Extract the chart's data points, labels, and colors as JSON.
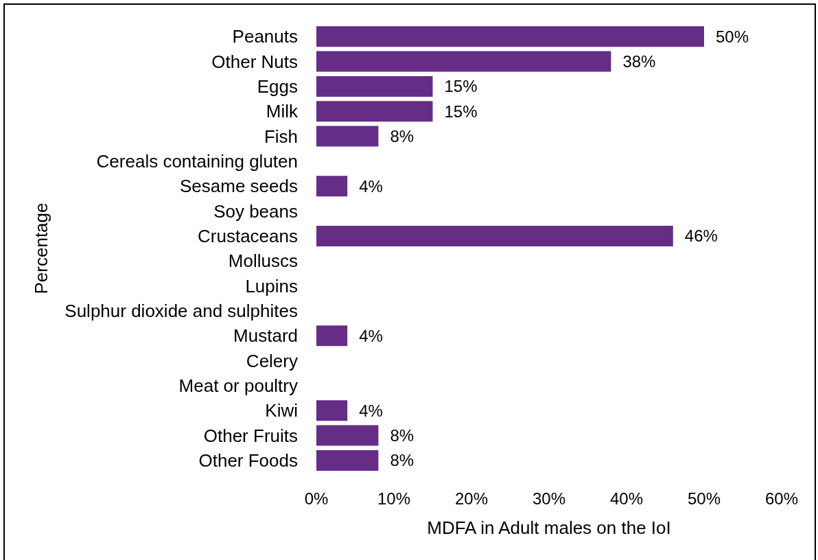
{
  "chart_data": {
    "type": "bar",
    "orientation": "horizontal",
    "xlabel": "MDFA in Adult males on the IoI",
    "ylabel": "Percentage",
    "categories": [
      "Peanuts",
      "Other Nuts",
      "Eggs",
      "Milk",
      "Fish",
      "Cereals containing gluten",
      "Sesame seeds",
      "Soy beans",
      "Crustaceans",
      "Molluscs",
      "Lupins",
      "Sulphur dioxide and sulphites",
      "Mustard",
      "Celery",
      "Meat or poultry",
      "Kiwi",
      "Other Fruits",
      "Other Foods"
    ],
    "values": [
      50,
      38,
      15,
      15,
      8,
      null,
      4,
      null,
      46,
      null,
      null,
      null,
      4,
      null,
      null,
      4,
      8,
      8
    ],
    "value_labels": [
      "50%",
      "38%",
      "15%",
      "15%",
      "8%",
      null,
      "4%",
      null,
      "46%",
      null,
      null,
      null,
      "4%",
      null,
      null,
      "4%",
      "8%",
      "8%"
    ],
    "color": "#652d86",
    "xlim": [
      0,
      60
    ],
    "xticks": [
      {
        "value": 0,
        "label": "0%"
      },
      {
        "value": 10,
        "label": "10%"
      },
      {
        "value": 20,
        "label": "20%"
      },
      {
        "value": 30,
        "label": "30%"
      },
      {
        "value": 40,
        "label": "40%"
      },
      {
        "value": 50,
        "label": "50%"
      },
      {
        "value": 60,
        "label": "60%"
      }
    ]
  }
}
